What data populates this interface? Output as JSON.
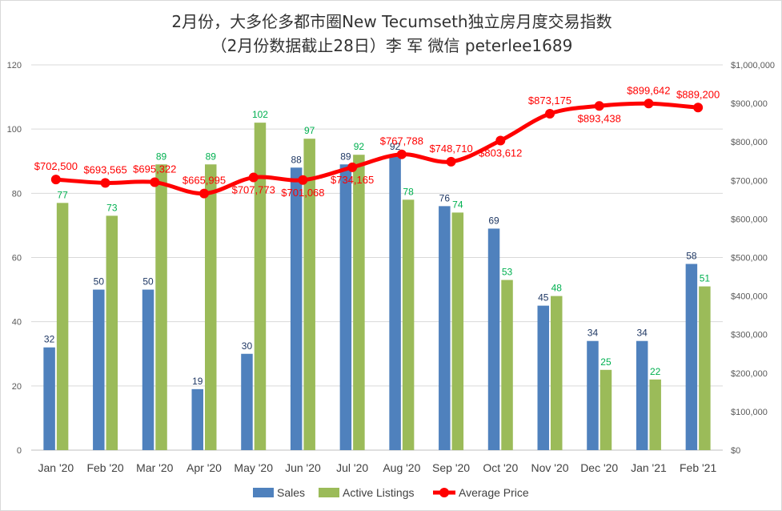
{
  "chart_data": {
    "type": "bar",
    "title": "2月份，大多伦多都市圈New Tecumseth独立房月度交易指数",
    "subtitle": "（2月份数据截止28日）李 军  微信  peterlee1689",
    "categories": [
      "Jan '20",
      "Feb '20",
      "Mar '20",
      "Apr '20",
      "May '20",
      "Jun '20",
      "Jul '20",
      "Aug '20",
      "Sep '20",
      "Oct '20",
      "Nov '20",
      "Dec '20",
      "Jan '21",
      "Feb '21"
    ],
    "series": [
      {
        "name": "Sales",
        "type": "bar",
        "axis": "left",
        "color": "#4f81bd",
        "values": [
          32,
          50,
          50,
          19,
          30,
          88,
          89,
          92,
          76,
          69,
          45,
          34,
          34,
          58
        ]
      },
      {
        "name": "Active Listings",
        "type": "bar",
        "axis": "left",
        "color": "#9bbb59",
        "values": [
          77,
          73,
          89,
          89,
          102,
          97,
          92,
          78,
          74,
          53,
          48,
          25,
          22,
          51
        ]
      },
      {
        "name": "Average Price",
        "type": "line",
        "axis": "right",
        "color": "#ff0000",
        "values": [
          702500,
          693565,
          695322,
          665995,
          707773,
          701068,
          734165,
          767788,
          748710,
          803612,
          873175,
          893438,
          899642,
          889200
        ]
      }
    ],
    "price_labels": [
      "$702,500",
      "$693,565",
      "$695,322",
      "$665,995",
      "$707,773",
      "$701,068",
      "$734,165",
      "$767,788",
      "$748,710",
      "$803,612",
      "$873,175",
      "$893,438",
      "$899,642",
      "$889,200"
    ],
    "ylim_left": [
      0,
      120
    ],
    "yticks_left": [
      "0",
      "20",
      "40",
      "60",
      "80",
      "100",
      "120"
    ],
    "ylim_right": [
      0,
      1000000
    ],
    "yticks_right": [
      "$0",
      "$100,000",
      "$200,000",
      "$300,000",
      "$400,000",
      "$500,000",
      "$600,000",
      "$700,000",
      "$800,000",
      "$900,000",
      "$1,000,000"
    ],
    "colors": {
      "sales_label": "#1f3864",
      "listings_label": "#00b050",
      "price_label": "#ff0000",
      "grid": "#d9d9d9",
      "axis_text": "#595959"
    },
    "legend": {
      "position": "bottom",
      "labels": [
        "Sales",
        "Active Listings",
        "Average Price"
      ]
    }
  }
}
